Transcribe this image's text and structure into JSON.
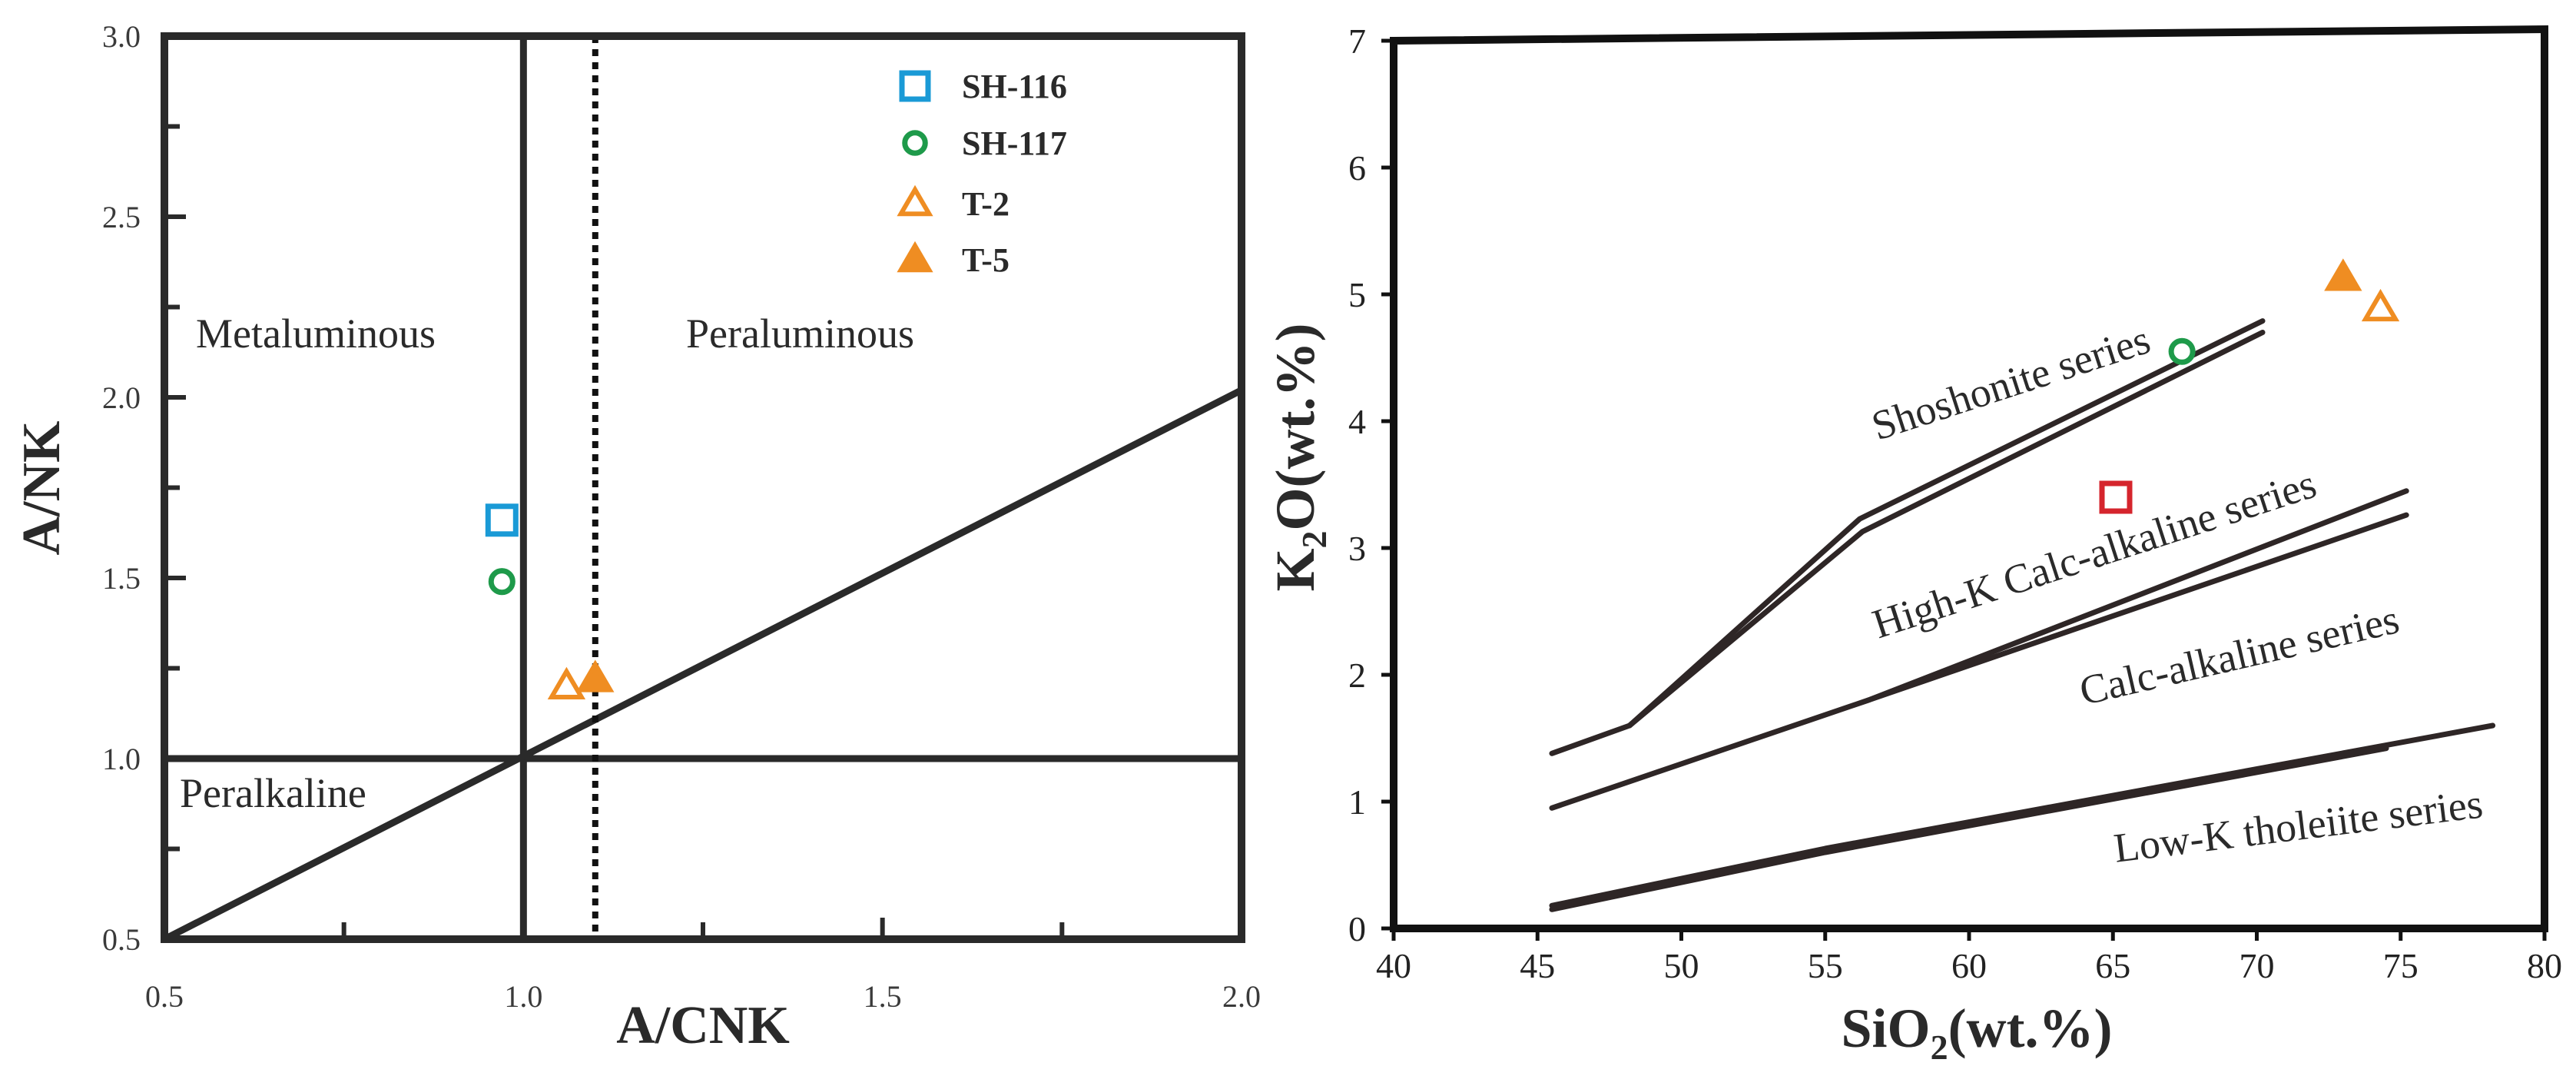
{
  "chart_data": [
    {
      "type": "scatter",
      "title": "",
      "xlabel": "A/CNK",
      "ylabel": "A/NK",
      "xlim": [
        0.5,
        2.0
      ],
      "ylim": [
        0.5,
        3.0
      ],
      "x_ticks": [
        "0.5",
        "1.0",
        "1.5",
        "2.0"
      ],
      "y_ticks": [
        "0.5",
        "1.0",
        "1.5",
        "2.0",
        "2.5",
        "3.0"
      ],
      "x_tick_values": [
        0.5,
        1.0,
        1.5,
        2.0
      ],
      "y_tick_values": [
        0.5,
        1.0,
        1.5,
        2.0,
        2.5,
        3.0
      ],
      "regions": [
        "Metaluminous",
        "Peraluminous",
        "Peralkaline"
      ],
      "boundaries": {
        "vertical_x": 1.0,
        "horizontal_y": 1.0,
        "dotted_vertical_x": 1.1,
        "diagonal": [
          [
            0.5,
            0.5
          ],
          [
            2.0,
            2.02
          ]
        ]
      },
      "legend_position": "top-right",
      "series": [
        {
          "name": "SH-116",
          "marker": "square-open",
          "color": "#1a9ad6",
          "points": [
            [
              0.97,
              1.66
            ]
          ]
        },
        {
          "name": "SH-117",
          "marker": "circle-open",
          "color": "#1e9a4a",
          "points": [
            [
              0.97,
              1.49
            ]
          ]
        },
        {
          "name": "T-2",
          "marker": "triangle-open",
          "color": "#ef8d22",
          "points": [
            [
              1.06,
              1.2
            ]
          ]
        },
        {
          "name": "T-5",
          "marker": "triangle-filled",
          "color": "#ef8d22",
          "points": [
            [
              1.1,
              1.22
            ]
          ]
        }
      ]
    },
    {
      "type": "scatter",
      "title": "",
      "xlabel_parts": [
        "SiO",
        "2",
        "(wt.%)"
      ],
      "ylabel_parts": [
        "K",
        "2",
        "O(wt.%)"
      ],
      "xlim": [
        40,
        80
      ],
      "ylim": [
        0,
        7
      ],
      "x_ticks": [
        "40",
        "45",
        "50",
        "55",
        "60",
        "65",
        "70",
        "75",
        "80"
      ],
      "y_ticks": [
        "0",
        "1",
        "2",
        "3",
        "4",
        "5",
        "6",
        "7"
      ],
      "x_tick_values": [
        40,
        45,
        50,
        55,
        60,
        65,
        70,
        75,
        80
      ],
      "y_tick_values": [
        0,
        1,
        2,
        3,
        4,
        5,
        6,
        7
      ],
      "series_labels": [
        {
          "text": "Shoshonite series",
          "at": [
            61.6,
            4.2
          ],
          "angle": -18
        },
        {
          "text": "High-K Calc-alkaline series",
          "at": [
            64.5,
            2.85
          ],
          "angle": -18
        },
        {
          "text": "Calc-alkaline series",
          "at": [
            69.5,
            2.05
          ],
          "angle": -13
        },
        {
          "text": "Low-K tholeiite series",
          "at": [
            71.5,
            0.7
          ],
          "angle": -7
        }
      ],
      "boundary_lines": [
        [
          [
            45.5,
            1.38
          ],
          [
            48.2,
            1.6
          ],
          [
            56.2,
            3.23
          ],
          [
            70.2,
            4.79
          ]
        ],
        [
          [
            48.2,
            1.6
          ],
          [
            56.3,
            3.13
          ],
          [
            70.2,
            4.7
          ]
        ],
        [
          [
            45.5,
            0.95
          ],
          [
            56.5,
            1.8
          ],
          [
            75.2,
            3.45
          ]
        ],
        [
          [
            56.5,
            1.8
          ],
          [
            75.2,
            3.26
          ]
        ],
        [
          [
            45.5,
            0.18
          ],
          [
            55.0,
            0.63
          ],
          [
            78.2,
            1.6
          ]
        ],
        [
          [
            45.5,
            0.15
          ],
          [
            55.0,
            0.6
          ],
          [
            74.5,
            1.42
          ]
        ]
      ],
      "series": [
        {
          "name": "SH-116",
          "marker": "square-open",
          "color": "#d5252d",
          "points": [
            [
              65.1,
              3.4
            ]
          ]
        },
        {
          "name": "SH-117",
          "marker": "circle-open",
          "color": "#1e9a4a",
          "points": [
            [
              67.4,
              4.55
            ]
          ]
        },
        {
          "name": "T-2",
          "marker": "triangle-open",
          "color": "#ef8d22",
          "points": [
            [
              74.3,
              4.89
            ]
          ]
        },
        {
          "name": "T-5",
          "marker": "triangle-filled",
          "color": "#ef8d22",
          "points": [
            [
              73.0,
              5.13
            ]
          ]
        }
      ]
    }
  ]
}
